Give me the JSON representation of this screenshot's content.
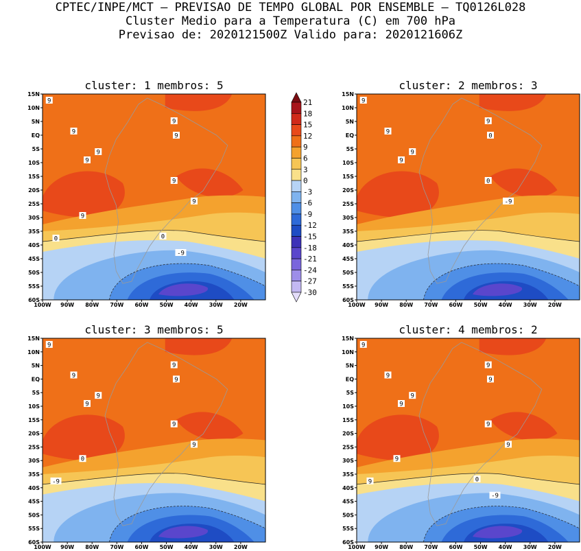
{
  "title": {
    "line1": "CPTEC/INPE/MCT – PREVISAO DE TEMPO GLOBAL POR ENSEMBLE – TQ0126L028",
    "line2": "Cluster Medio para a Temperatura (C) em 700 hPa",
    "line3": "Previsao de: 2020121500Z   Valido para: 2020121606Z"
  },
  "chart_data": [
    {
      "type": "heatmap",
      "title": "cluster: 1  membros: 5",
      "xlabel": "",
      "ylabel": "",
      "x_ticks": [
        "100W",
        "90W",
        "80W",
        "70W",
        "60W",
        "50W",
        "40W",
        "30W",
        "20W"
      ],
      "y_ticks": [
        "15N",
        "10N",
        "5N",
        "EQ",
        "5S",
        "10S",
        "15S",
        "20S",
        "25S",
        "30S",
        "35S",
        "40S",
        "45S",
        "50S",
        "55S",
        "60S"
      ],
      "xlim": [
        -100,
        -10
      ],
      "ylim": [
        -60,
        15
      ],
      "contour_labels": [
        "9",
        "9",
        "9",
        "9",
        "9",
        "9",
        "9",
        "9",
        "9",
        "0",
        "0",
        "-9"
      ]
    },
    {
      "type": "heatmap",
      "title": "cluster: 2  membros: 3",
      "xlabel": "",
      "ylabel": "",
      "x_ticks": [
        "100W",
        "90W",
        "80W",
        "70W",
        "60W",
        "50W",
        "40W",
        "30W",
        "20W"
      ],
      "y_ticks": [
        "15N",
        "10N",
        "5N",
        "EQ",
        "5S",
        "10S",
        "15S",
        "20S",
        "25S",
        "30S",
        "35S",
        "40S",
        "45S",
        "50S",
        "55S",
        "60S"
      ],
      "xlim": [
        -100,
        -10
      ],
      "ylim": [
        -60,
        15
      ],
      "contour_labels": [
        "9",
        "9",
        "9",
        "9",
        "9",
        "0",
        "0",
        "-9"
      ]
    },
    {
      "type": "heatmap",
      "title": "cluster: 3  membros: 5",
      "xlabel": "",
      "ylabel": "",
      "x_ticks": [
        "100W",
        "90W",
        "80W",
        "70W",
        "60W",
        "50W",
        "40W",
        "30W",
        "20W"
      ],
      "y_ticks": [
        "15N",
        "10N",
        "5N",
        "EQ",
        "5S",
        "10S",
        "15S",
        "20S",
        "25S",
        "30S",
        "35S",
        "40S",
        "45S",
        "50S",
        "55S",
        "60S"
      ],
      "xlim": [
        -100,
        -10
      ],
      "ylim": [
        -60,
        15
      ],
      "contour_labels": [
        "9",
        "9",
        "9",
        "9",
        "9",
        "9",
        "9",
        "9",
        "0",
        "-9"
      ]
    },
    {
      "type": "heatmap",
      "title": "cluster: 4  membros: 2",
      "xlabel": "",
      "ylabel": "",
      "x_ticks": [
        "100W",
        "90W",
        "80W",
        "70W",
        "60W",
        "50W",
        "40W",
        "30W",
        "20W"
      ],
      "y_ticks": [
        "15N",
        "10N",
        "5N",
        "EQ",
        "5S",
        "10S",
        "15S",
        "20S",
        "25S",
        "30S",
        "35S",
        "40S",
        "45S",
        "50S",
        "55S",
        "60S"
      ],
      "xlim": [
        -100,
        -10
      ],
      "ylim": [
        -60,
        15
      ],
      "contour_labels": [
        "9",
        "9",
        "9",
        "9",
        "9",
        "9",
        "9",
        "9",
        "9",
        "9",
        "0",
        "-9"
      ]
    }
  ],
  "colorbar": {
    "labels": [
      "21",
      "18",
      "15",
      "12",
      "9",
      "6",
      "3",
      "0",
      "-3",
      "-6",
      "-9",
      "-12",
      "-15",
      "-18",
      "-21",
      "-24",
      "-27",
      "-30"
    ],
    "colors": [
      "#7a0c12",
      "#a8141a",
      "#d02a1a",
      "#e8491a",
      "#ef7018",
      "#f4a22e",
      "#f6c555",
      "#f9e08a",
      "#b6d3f5",
      "#7fb3ef",
      "#4f8fe6",
      "#2e6ad8",
      "#1e4cc4",
      "#3d32b8",
      "#5a46cc",
      "#7a66dc",
      "#9d8ee8",
      "#c3b8f2",
      "#e4ddfb"
    ]
  }
}
